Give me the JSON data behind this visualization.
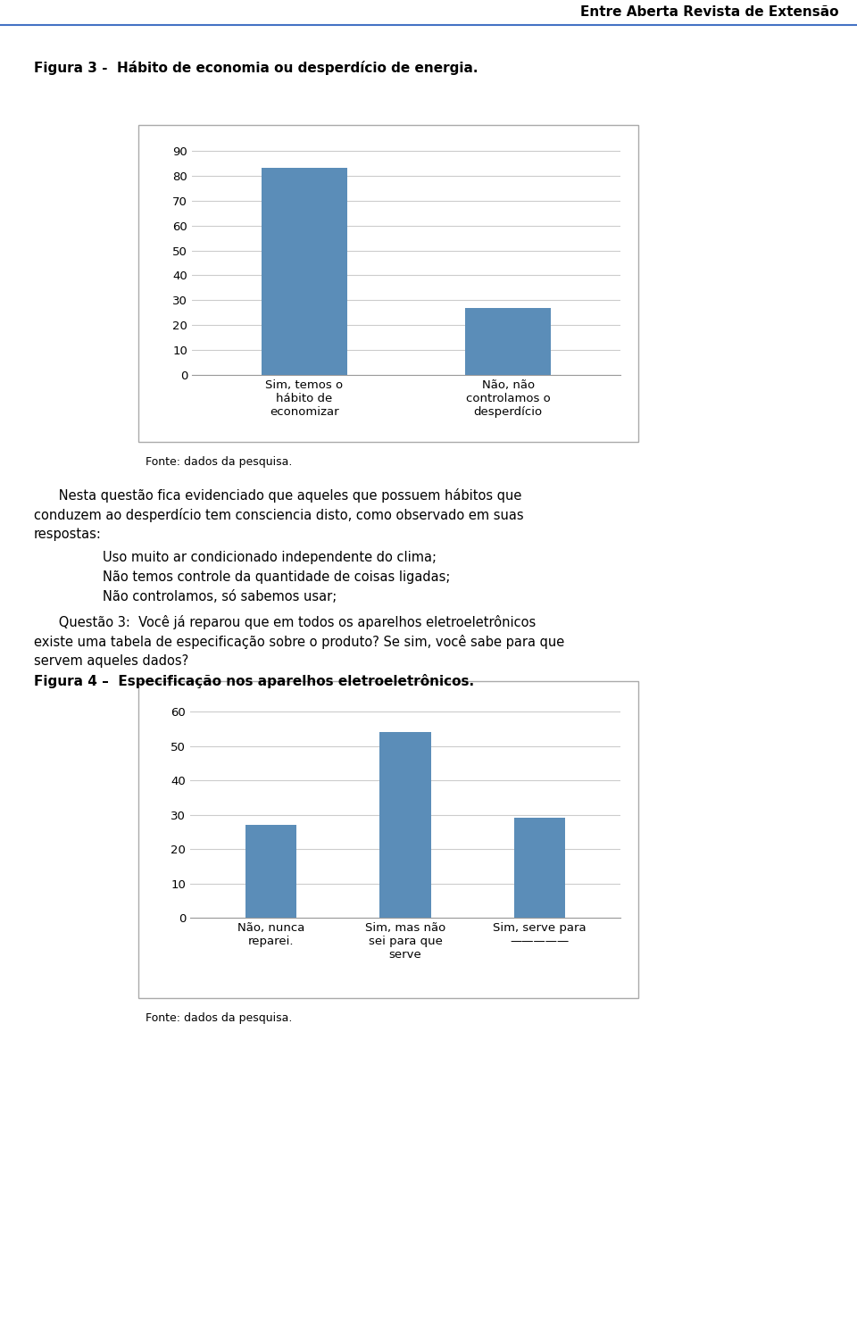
{
  "header_text": "Entre Aberta Revista de Extensão",
  "header_line_color": "#4472c4",
  "fig1_title": "Figura 3 -  Hábito de economia ou desperdício de energia.",
  "fig1_categories": [
    "Sim, temos o\nhábito de\neconomizar",
    "Não, não\ncontrolamos o\ndesperdício"
  ],
  "fig1_values": [
    83,
    27
  ],
  "fig1_yticks": [
    0,
    10,
    20,
    30,
    40,
    50,
    60,
    70,
    80,
    90
  ],
  "fig1_ylim": [
    0,
    95
  ],
  "fig1_bar_color": "#5b8db8",
  "fig1_source": "Fonte: dados da pesquisa.",
  "bullet1": "Uso muito ar condicionado independente do clima;",
  "bullet2": "Não temos controle da quantidade de coisas ligadas;",
  "bullet3": "Não controlamos, só sabemos usar;",
  "fig2_title": "Figura 4 –  Especificação nos aparelhos eletroeletrônicos.",
  "fig2_categories": [
    "Não, nunca\nreparei.",
    "Sim, mas não\nsei para que\nserve",
    "Sim, serve para\n—————"
  ],
  "fig2_values": [
    27,
    54,
    29
  ],
  "fig2_yticks": [
    0,
    10,
    20,
    30,
    40,
    50,
    60
  ],
  "fig2_ylim": [
    0,
    65
  ],
  "fig2_bar_color": "#5b8db8",
  "fig2_source": "Fonte: dados da pesquisa.",
  "background_color": "#ffffff",
  "text_color": "#000000",
  "grid_color": "#cccccc",
  "box_edge_color": "#aaaaaa"
}
